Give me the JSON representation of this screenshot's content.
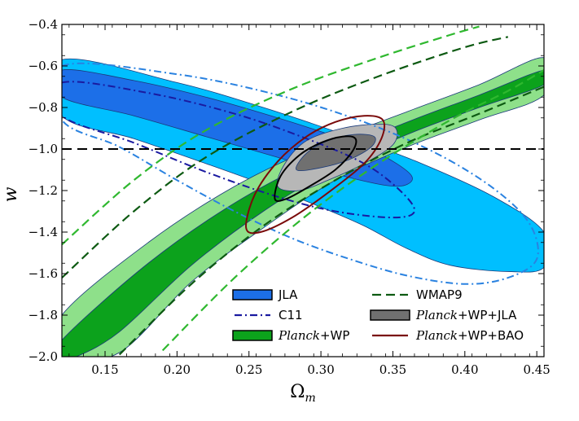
{
  "chart_data": {
    "type": "contour",
    "xlabel": "Ω",
    "xlabel_sub": "m",
    "ylabel": "w",
    "xlim": [
      0.12,
      0.455
    ],
    "ylim": [
      -2.0,
      -0.4
    ],
    "xticks": [
      0.15,
      0.2,
      0.25,
      0.3,
      0.35,
      0.4,
      0.45
    ],
    "xtick_labels": [
      "0.15",
      "0.20",
      "0.25",
      "0.30",
      "0.35",
      "0.40",
      "0.45"
    ],
    "yticks": [
      -0.4,
      -0.6,
      -0.8,
      -1.0,
      -1.2,
      -1.4,
      -1.6,
      -1.8,
      -2.0
    ],
    "ytick_labels": [
      "−0.4",
      "−0.6",
      "−0.8",
      "−1.0",
      "−1.2",
      "−1.4",
      "−1.6",
      "−1.8",
      "−2.0"
    ],
    "reference_line": {
      "y": -1.0,
      "style": "dashed",
      "color": "#000000"
    },
    "legend_position": "bottom-center",
    "colors": {
      "jla_outer": "#00bfff",
      "jla_inner": "#1c6fe8",
      "planck_wp_outer": "#8ee08a",
      "planck_wp_inner": "#0ca21c",
      "planck_wp_jla_outer": "#b7b7b7",
      "planck_wp_jla_inner": "#707070",
      "planck_wp_bao": "#7a0a0a",
      "c11": "#1a1aa0",
      "c11_outer": "#2a82e0",
      "wmap9_inner": "#0d5a12",
      "wmap9_outer": "#2fb82f"
    },
    "series": [
      {
        "name": "JLA",
        "style": "filled",
        "contours": [
          {
            "level": "2sigma",
            "points": [
              [
                0.12,
                -0.57
              ],
              [
                0.2,
                -0.68
              ],
              [
                0.26,
                -0.8
              ],
              [
                0.32,
                -0.94
              ],
              [
                0.37,
                -1.07
              ],
              [
                0.42,
                -1.23
              ],
              [
                0.455,
                -1.4
              ],
              [
                0.455,
                -1.57
              ],
              [
                0.43,
                -1.59
              ],
              [
                0.39,
                -1.56
              ],
              [
                0.36,
                -1.48
              ],
              [
                0.33,
                -1.37
              ],
              [
                0.3,
                -1.28
              ],
              [
                0.26,
                -1.17
              ],
              [
                0.22,
                -1.07
              ],
              [
                0.17,
                -0.95
              ],
              [
                0.12,
                -0.84
              ]
            ]
          },
          {
            "level": "1sigma",
            "points": [
              [
                0.12,
                -0.62
              ],
              [
                0.17,
                -0.67
              ],
              [
                0.22,
                -0.75
              ],
              [
                0.27,
                -0.85
              ],
              [
                0.31,
                -0.94
              ],
              [
                0.34,
                -1.02
              ],
              [
                0.362,
                -1.12
              ],
              [
                0.36,
                -1.17
              ],
              [
                0.345,
                -1.175
              ],
              [
                0.31,
                -1.12
              ],
              [
                0.27,
                -1.04
              ],
              [
                0.22,
                -0.94
              ],
              [
                0.17,
                -0.84
              ],
              [
                0.12,
                -0.75
              ]
            ]
          }
        ]
      },
      {
        "name": "C11",
        "style": "dashdot",
        "contours": [
          {
            "level": "1sigma",
            "points": [
              [
                0.12,
                -0.68
              ],
              [
                0.18,
                -0.73
              ],
              [
                0.24,
                -0.83
              ],
              [
                0.29,
                -0.95
              ],
              [
                0.33,
                -1.07
              ],
              [
                0.355,
                -1.2
              ],
              [
                0.365,
                -1.3
              ],
              [
                0.35,
                -1.33
              ],
              [
                0.31,
                -1.3
              ],
              [
                0.27,
                -1.23
              ],
              [
                0.22,
                -1.11
              ],
              [
                0.17,
                -0.97
              ],
              [
                0.12,
                -0.84
              ]
            ]
          },
          {
            "level": "2sigma",
            "points": [
              [
                0.12,
                -0.6
              ],
              [
                0.2,
                -0.64
              ],
              [
                0.27,
                -0.74
              ],
              [
                0.33,
                -0.87
              ],
              [
                0.38,
                -1.02
              ],
              [
                0.42,
                -1.19
              ],
              [
                0.445,
                -1.36
              ],
              [
                0.45,
                -1.53
              ],
              [
                0.43,
                -1.62
              ],
              [
                0.4,
                -1.65
              ],
              [
                0.36,
                -1.61
              ],
              [
                0.32,
                -1.53
              ],
              [
                0.28,
                -1.43
              ],
              [
                0.24,
                -1.3
              ],
              [
                0.2,
                -1.15
              ],
              [
                0.16,
                -0.99
              ],
              [
                0.12,
                -0.86
              ]
            ]
          }
        ]
      },
      {
        "name": "Planck+WP",
        "style": "filled",
        "contours": [
          {
            "level": "2sigma",
            "points": [
              [
                0.12,
                -1.8
              ],
              [
                0.18,
                -1.45
              ],
              [
                0.24,
                -1.18
              ],
              [
                0.3,
                -0.98
              ],
              [
                0.36,
                -0.82
              ],
              [
                0.41,
                -0.69
              ],
              [
                0.455,
                -0.56
              ],
              [
                0.455,
                -0.74
              ],
              [
                0.41,
                -0.86
              ],
              [
                0.36,
                -0.99
              ],
              [
                0.31,
                -1.15
              ],
              [
                0.26,
                -1.38
              ],
              [
                0.21,
                -1.64
              ],
              [
                0.16,
                -1.98
              ],
              [
                0.12,
                -2.0
              ]
            ]
          },
          {
            "level": "1sigma",
            "points": [
              [
                0.12,
                -1.92
              ],
              [
                0.18,
                -1.55
              ],
              [
                0.24,
                -1.26
              ],
              [
                0.3,
                -1.04
              ],
              [
                0.36,
                -0.87
              ],
              [
                0.41,
                -0.74
              ],
              [
                0.455,
                -0.62
              ],
              [
                0.455,
                -0.69
              ],
              [
                0.41,
                -0.8
              ],
              [
                0.36,
                -0.93
              ],
              [
                0.31,
                -1.09
              ],
              [
                0.26,
                -1.3
              ],
              [
                0.21,
                -1.56
              ],
              [
                0.16,
                -1.88
              ],
              [
                0.13,
                -2.0
              ],
              [
                0.12,
                -2.0
              ]
            ]
          }
        ]
      },
      {
        "name": "WMAP9",
        "style": "dashed",
        "contours": [
          {
            "level": "1sigma",
            "points": [
              [
                0.12,
                -1.62
              ],
              [
                0.17,
                -1.3
              ],
              [
                0.22,
                -1.04
              ],
              [
                0.28,
                -0.82
              ],
              [
                0.34,
                -0.65
              ],
              [
                0.4,
                -0.51
              ],
              [
                0.43,
                -0.46
              ]
            ]
          },
          {
            "level": "1sigma",
            "points": [
              [
                0.16,
                -1.99
              ],
              [
                0.21,
                -1.65
              ],
              [
                0.26,
                -1.37
              ],
              [
                0.31,
                -1.15
              ],
              [
                0.36,
                -0.97
              ],
              [
                0.41,
                -0.83
              ],
              [
                0.455,
                -0.7
              ]
            ]
          },
          {
            "level": "2sigma",
            "points": [
              [
                0.12,
                -1.46
              ],
              [
                0.17,
                -1.15
              ],
              [
                0.22,
                -0.91
              ],
              [
                0.28,
                -0.71
              ],
              [
                0.34,
                -0.56
              ],
              [
                0.39,
                -0.45
              ],
              [
                0.41,
                -0.41
              ]
            ]
          },
          {
            "level": "2sigma",
            "points": [
              [
                0.19,
                -1.97
              ],
              [
                0.24,
                -1.62
              ],
              [
                0.29,
                -1.32
              ],
              [
                0.34,
                -1.07
              ],
              [
                0.39,
                -0.86
              ],
              [
                0.43,
                -0.72
              ],
              [
                0.455,
                -0.62
              ]
            ]
          }
        ]
      },
      {
        "name": "Planck+WP+JLA",
        "style": "filled",
        "contours": [
          {
            "level": "2sigma",
            "points": [
              [
                0.27,
                -1.18
              ],
              [
                0.275,
                -1.07
              ],
              [
                0.29,
                -0.96
              ],
              [
                0.315,
                -0.9
              ],
              [
                0.34,
                -0.88
              ],
              [
                0.352,
                -0.9
              ],
              [
                0.35,
                -0.98
              ],
              [
                0.33,
                -1.07
              ],
              [
                0.305,
                -1.15
              ],
              [
                0.285,
                -1.2
              ]
            ]
          },
          {
            "level": "1sigma",
            "points": [
              [
                0.283,
                -1.1
              ],
              [
                0.29,
                -1.02
              ],
              [
                0.305,
                -0.96
              ],
              [
                0.323,
                -0.93
              ],
              [
                0.337,
                -0.94
              ],
              [
                0.335,
                -0.99
              ],
              [
                0.32,
                -1.05
              ],
              [
                0.3,
                -1.09
              ]
            ]
          }
        ]
      },
      {
        "name": "Planck+WP+BAO",
        "style": "line",
        "contours": [
          {
            "level": "1sigma",
            "points": [
              [
                0.268,
                -1.24
              ],
              [
                0.272,
                -1.13
              ],
              [
                0.285,
                -1.03
              ],
              [
                0.3,
                -0.97
              ],
              [
                0.315,
                -0.94
              ],
              [
                0.324,
                -0.95
              ],
              [
                0.322,
                -1.01
              ],
              [
                0.31,
                -1.1
              ],
              [
                0.292,
                -1.18
              ],
              [
                0.276,
                -1.24
              ]
            ]
          },
          {
            "level": "2sigma",
            "points": [
              [
                0.248,
                -1.38
              ],
              [
                0.254,
                -1.22
              ],
              [
                0.27,
                -1.06
              ],
              [
                0.29,
                -0.94
              ],
              [
                0.31,
                -0.87
              ],
              [
                0.33,
                -0.84
              ],
              [
                0.343,
                -0.86
              ],
              [
                0.342,
                -0.95
              ],
              [
                0.33,
                -1.07
              ],
              [
                0.305,
                -1.21
              ],
              [
                0.28,
                -1.33
              ],
              [
                0.258,
                -1.4
              ]
            ]
          }
        ]
      }
    ]
  },
  "legend": {
    "items": [
      {
        "id": "jla",
        "parts": [
          {
            "t": "JLA",
            "i": false
          }
        ]
      },
      {
        "id": "c11",
        "parts": [
          {
            "t": "C11",
            "i": false
          }
        ]
      },
      {
        "id": "planck-wp",
        "parts": [
          {
            "t": "Planck",
            "i": true
          },
          {
            "t": "+WP",
            "i": false
          }
        ]
      },
      {
        "id": "wmap9",
        "parts": [
          {
            "t": "WMAP9",
            "i": false
          }
        ]
      },
      {
        "id": "planck-wp-jla",
        "parts": [
          {
            "t": "Planck",
            "i": true
          },
          {
            "t": "+WP+JLA",
            "i": false
          }
        ]
      },
      {
        "id": "planck-wp-bao",
        "parts": [
          {
            "t": "Planck",
            "i": true
          },
          {
            "t": "+WP+BAO",
            "i": false
          }
        ]
      }
    ]
  }
}
